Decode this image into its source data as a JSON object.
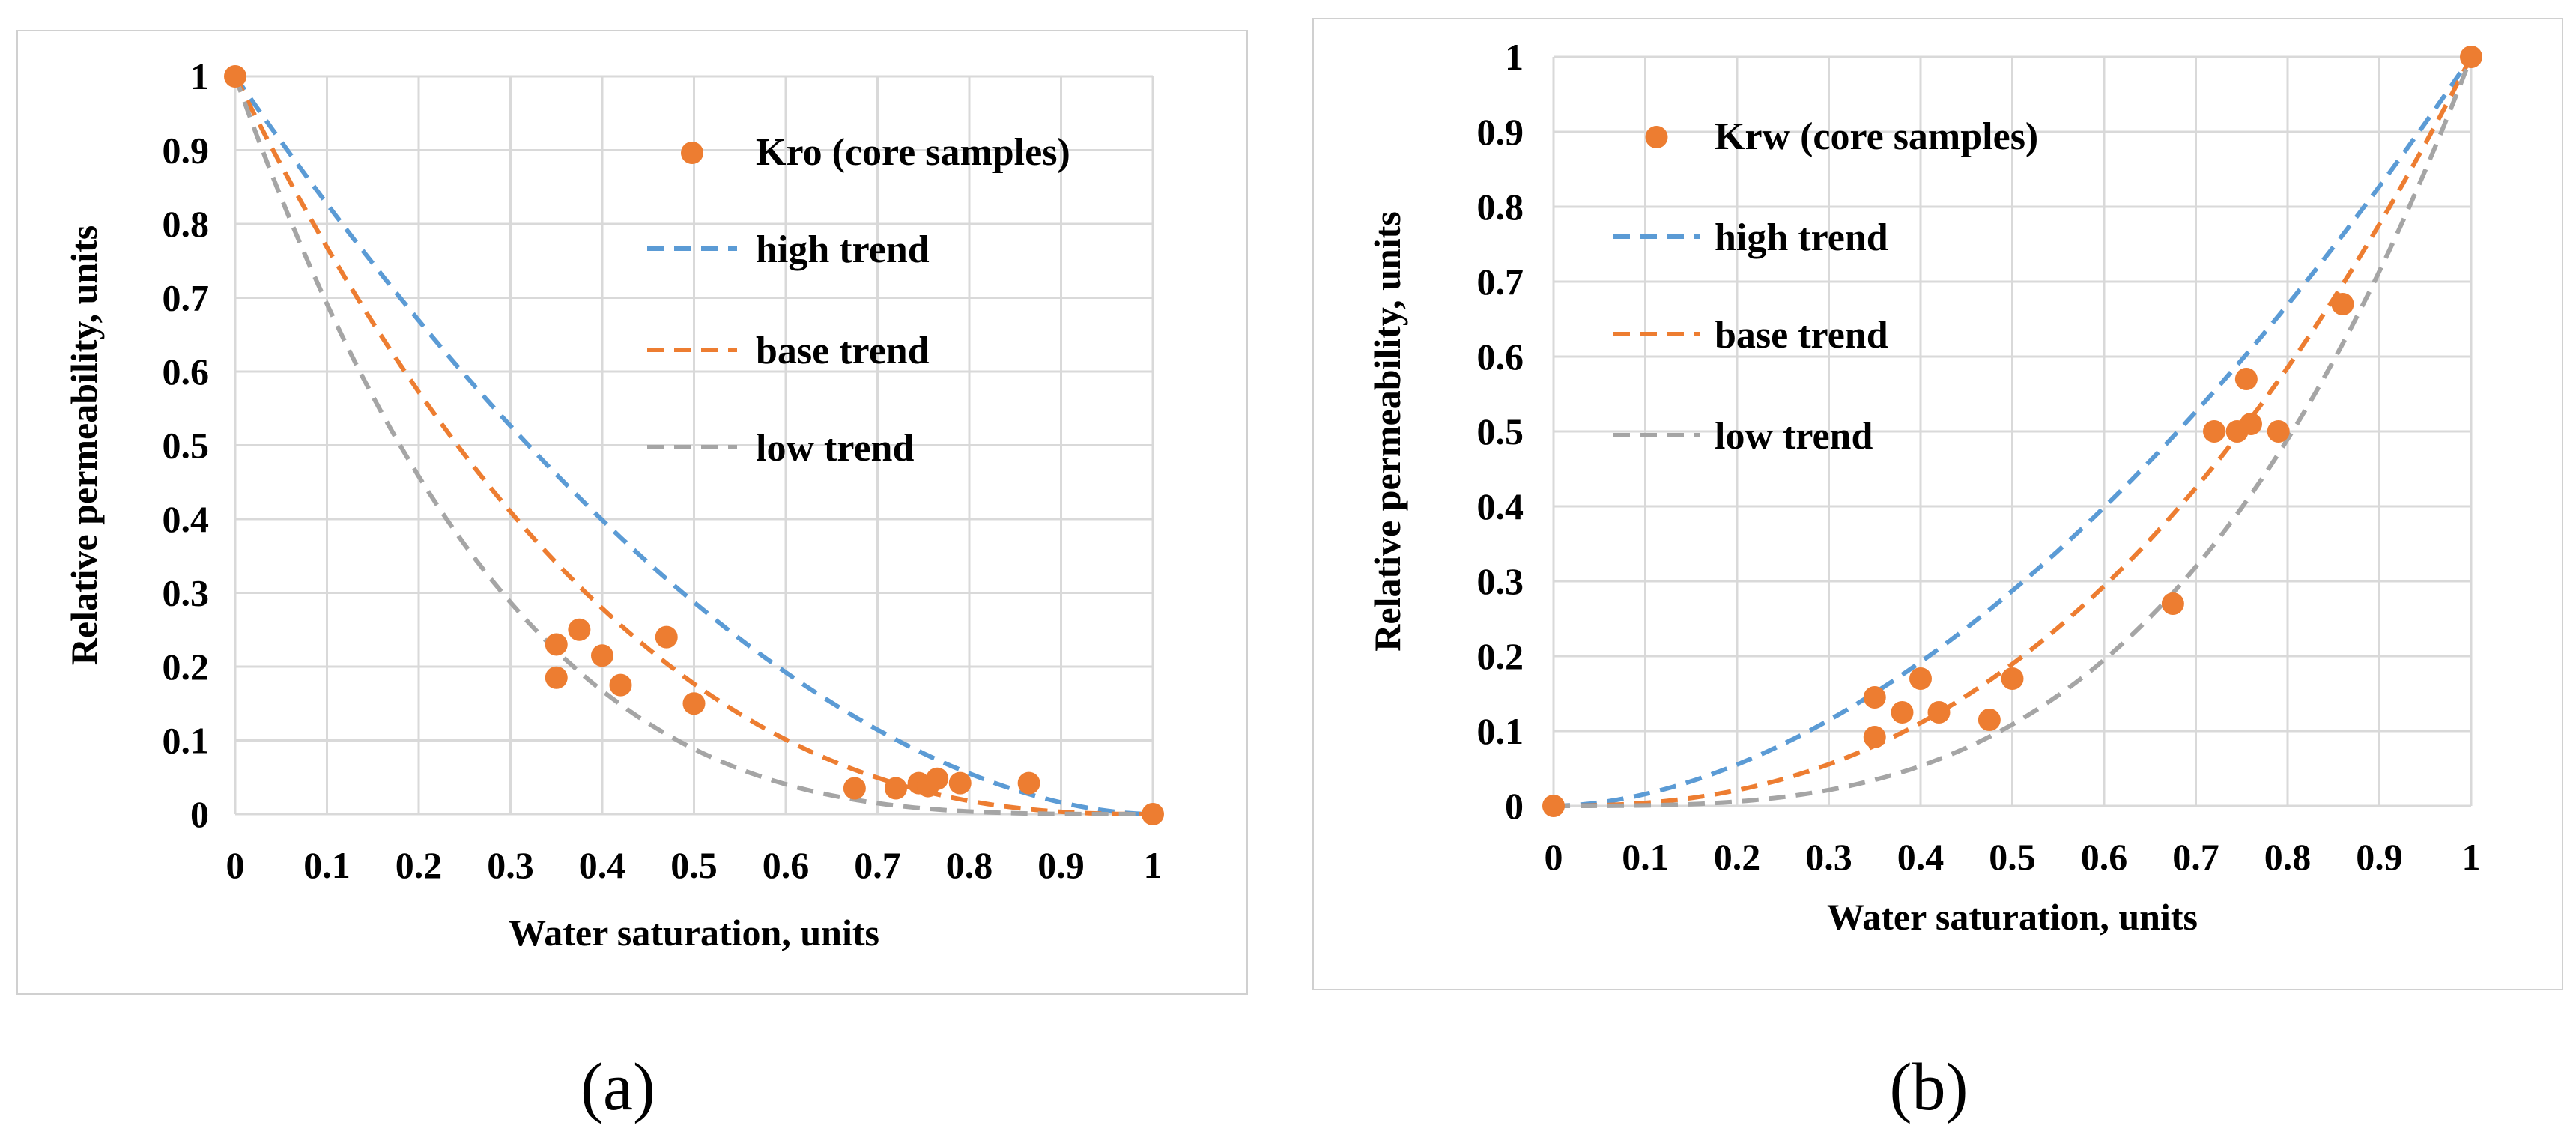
{
  "panels": [
    {
      "label": "(a)",
      "chart_data": {
        "type": "scatter",
        "title": "",
        "xlabel": "Water saturation, units",
        "ylabel": "Relative permeability, units",
        "xlim": [
          0,
          1
        ],
        "ylim": [
          0,
          1
        ],
        "xticks": [
          "0",
          "0.1",
          "0.2",
          "0.3",
          "0.4",
          "0.5",
          "0.6",
          "0.7",
          "0.8",
          "0.9",
          "1"
        ],
        "yticks": [
          "0",
          "0.1",
          "0.2",
          "0.3",
          "0.4",
          "0.5",
          "0.6",
          "0.7",
          "0.8",
          "0.9",
          "1"
        ],
        "legend_position": "top-right",
        "series": [
          {
            "name": "Kro (core samples)",
            "kind": "points",
            "color": "#ED7D31",
            "x": [
              0,
              0.35,
              0.35,
              0.375,
              0.4,
              0.42,
              0.47,
              0.5,
              0.675,
              0.72,
              0.745,
              0.755,
              0.765,
              0.79,
              0.865,
              1
            ],
            "y": [
              1,
              0.23,
              0.185,
              0.25,
              0.215,
              0.175,
              0.24,
              0.15,
              0.035,
              0.035,
              0.042,
              0.038,
              0.048,
              0.042,
              0.042,
              0
            ]
          },
          {
            "name": "high trend",
            "kind": "dashed-curve",
            "color": "#5B9BD5",
            "exponent": 1.8,
            "orientation": "decreasing"
          },
          {
            "name": "base trend",
            "kind": "dashed-curve",
            "color": "#ED7D31",
            "exponent": 2.5,
            "orientation": "decreasing"
          },
          {
            "name": "low trend",
            "kind": "dashed-curve",
            "color": "#A5A5A5",
            "exponent": 3.5,
            "orientation": "decreasing"
          }
        ]
      }
    },
    {
      "label": "(b)",
      "chart_data": {
        "type": "scatter",
        "title": "",
        "xlabel": "Water saturation, units",
        "ylabel": "Relative permeability, units",
        "xlim": [
          0,
          1
        ],
        "ylim": [
          0,
          1
        ],
        "xticks": [
          "0",
          "0.1",
          "0.2",
          "0.3",
          "0.4",
          "0.5",
          "0.6",
          "0.7",
          "0.8",
          "0.9",
          "1"
        ],
        "yticks": [
          "0",
          "0.1",
          "0.2",
          "0.3",
          "0.4",
          "0.5",
          "0.6",
          "0.7",
          "0.8",
          "0.9",
          "1"
        ],
        "legend_position": "top-left",
        "series": [
          {
            "name": "Krw (core samples)",
            "kind": "points",
            "color": "#ED7D31",
            "x": [
              0,
              0.35,
              0.35,
              0.38,
              0.4,
              0.42,
              0.475,
              0.5,
              0.675,
              0.72,
              0.745,
              0.755,
              0.76,
              0.79,
              0.86,
              1
            ],
            "y": [
              0,
              0.145,
              0.092,
              0.125,
              0.17,
              0.125,
              0.115,
              0.17,
              0.27,
              0.5,
              0.5,
              0.57,
              0.51,
              0.5,
              0.67,
              1
            ]
          },
          {
            "name": "high trend",
            "kind": "dashed-curve",
            "color": "#5B9BD5",
            "exponent": 1.8,
            "orientation": "increasing"
          },
          {
            "name": "base trend",
            "kind": "dashed-curve",
            "color": "#ED7D31",
            "exponent": 2.4,
            "orientation": "increasing"
          },
          {
            "name": "low trend",
            "kind": "dashed-curve",
            "color": "#A5A5A5",
            "exponent": 3.2,
            "orientation": "increasing"
          }
        ]
      }
    }
  ]
}
